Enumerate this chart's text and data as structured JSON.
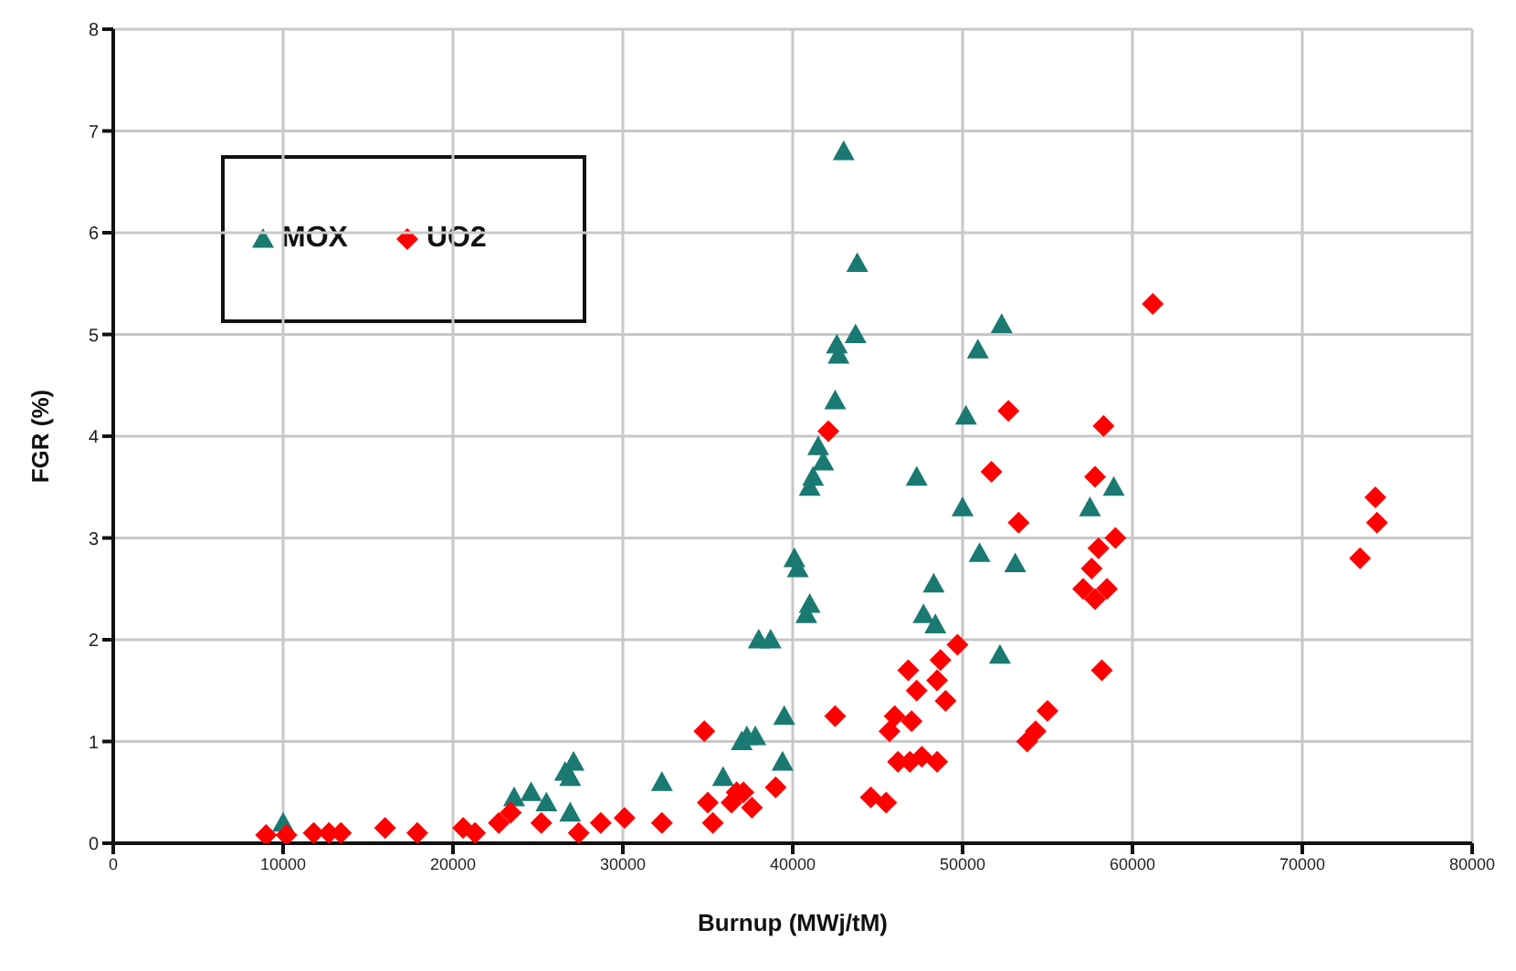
{
  "chart_data": {
    "type": "scatter",
    "xlabel": "Burnup (MWj/tM)",
    "ylabel": "FGR (%)",
    "xlim": [
      0,
      80000
    ],
    "xticks": [
      0,
      10000,
      20000,
      30000,
      40000,
      50000,
      60000,
      70000,
      80000
    ],
    "ylim": [
      0,
      8
    ],
    "yticks": [
      0,
      1,
      2,
      3,
      4,
      5,
      6,
      7,
      8
    ],
    "grid": true,
    "legend": "top left",
    "series": [
      {
        "name": "MOX",
        "color": "#1a7a72",
        "marker": "triangle",
        "x": [
          43000,
          43800,
          43700,
          42600,
          42700,
          42500,
          52300,
          50900,
          50200,
          58900,
          57500,
          47300,
          50000,
          51000,
          53100,
          48300,
          47700,
          48400,
          52200,
          41500,
          41800,
          41200,
          41000,
          40100,
          40300,
          41000,
          40800,
          38700,
          39500,
          37800,
          37000,
          39400,
          37300,
          38000,
          35900,
          32300,
          27100,
          26600,
          26900,
          24600,
          25500,
          23600,
          26900,
          10000
        ],
        "values": [
          6.8,
          5.7,
          5.0,
          4.9,
          4.8,
          4.35,
          5.1,
          4.85,
          4.2,
          3.5,
          3.3,
          3.6,
          3.3,
          2.85,
          2.75,
          2.55,
          2.25,
          2.15,
          1.85,
          3.9,
          3.75,
          3.6,
          3.5,
          2.8,
          2.7,
          2.35,
          2.25,
          2.0,
          1.25,
          1.05,
          1.0,
          0.8,
          1.05,
          2.0,
          0.65,
          0.6,
          0.8,
          0.7,
          0.3,
          0.5,
          0.4,
          0.45,
          0.65,
          0.2
        ]
      },
      {
        "name": "UO2",
        "color": "#ff0000",
        "marker": "diamond",
        "x": [
          61200,
          52700,
          58300,
          42100,
          51700,
          57800,
          53300,
          74300,
          74400,
          73400,
          59000,
          58000,
          57600,
          57100,
          57800,
          58500,
          58200,
          49700,
          48700,
          46800,
          48500,
          49000,
          47300,
          46000,
          45700,
          47000,
          55000,
          54300,
          53800,
          42500,
          46200,
          47600,
          48500,
          46900,
          44600,
          45500,
          39000,
          37100,
          37600,
          36400,
          34800,
          35000,
          35300,
          36700,
          32300,
          30100,
          28700,
          27400,
          23400,
          22700,
          25200,
          20600,
          21300,
          17900,
          16000,
          12700,
          11800,
          10200,
          9000,
          13400
        ],
        "values": [
          5.3,
          4.25,
          4.1,
          4.05,
          3.65,
          3.6,
          3.15,
          3.4,
          3.15,
          2.8,
          3.0,
          2.9,
          2.7,
          2.5,
          2.4,
          2.5,
          1.7,
          1.95,
          1.8,
          1.7,
          1.6,
          1.4,
          1.5,
          1.25,
          1.1,
          1.2,
          1.3,
          1.1,
          1.0,
          1.25,
          0.8,
          0.85,
          0.8,
          0.8,
          0.45,
          0.4,
          0.55,
          0.5,
          0.35,
          0.4,
          1.1,
          0.4,
          0.2,
          0.5,
          0.2,
          0.25,
          0.2,
          0.1,
          0.3,
          0.2,
          0.2,
          0.15,
          0.1,
          0.1,
          0.15,
          0.1,
          0.1,
          0.08,
          0.08,
          0.1
        ]
      }
    ]
  }
}
